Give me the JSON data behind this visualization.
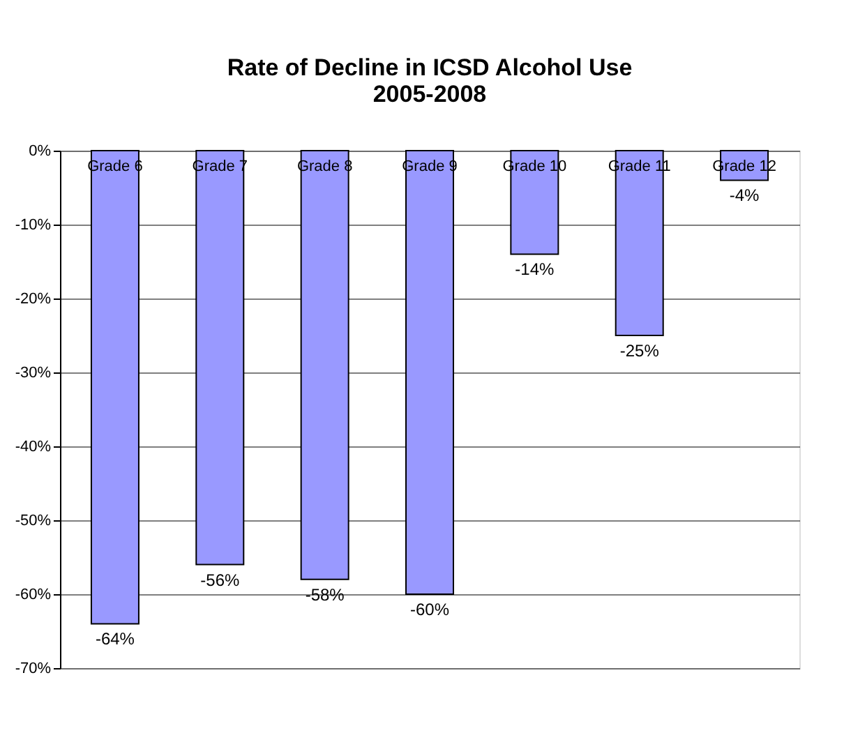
{
  "chart_data": {
    "type": "bar",
    "title": "Rate of Decline in ICSD Alcohol Use\n2005-2008",
    "categories": [
      "Grade 6",
      "Grade 7",
      "Grade 8",
      "Grade 9",
      "Grade 10",
      "Grade 11",
      "Grade 12"
    ],
    "values": [
      -64,
      -56,
      -58,
      -60,
      -14,
      -25,
      -4
    ],
    "value_labels": [
      "-64%",
      "-56%",
      "-58%",
      "-60%",
      "-14%",
      "-25%",
      "-4%"
    ],
    "color": "#9999ff",
    "ylim": [
      -70,
      0
    ],
    "yticks": [
      {
        "value": 0,
        "label": "0%"
      },
      {
        "value": -10,
        "label": "-10%"
      },
      {
        "value": -20,
        "label": "-20%"
      },
      {
        "value": -30,
        "label": "-30%"
      },
      {
        "value": -40,
        "label": "-40%"
      },
      {
        "value": -50,
        "label": "-50%"
      },
      {
        "value": -60,
        "label": "-60%"
      },
      {
        "value": -70,
        "label": "-70%"
      }
    ],
    "grid": "y"
  }
}
